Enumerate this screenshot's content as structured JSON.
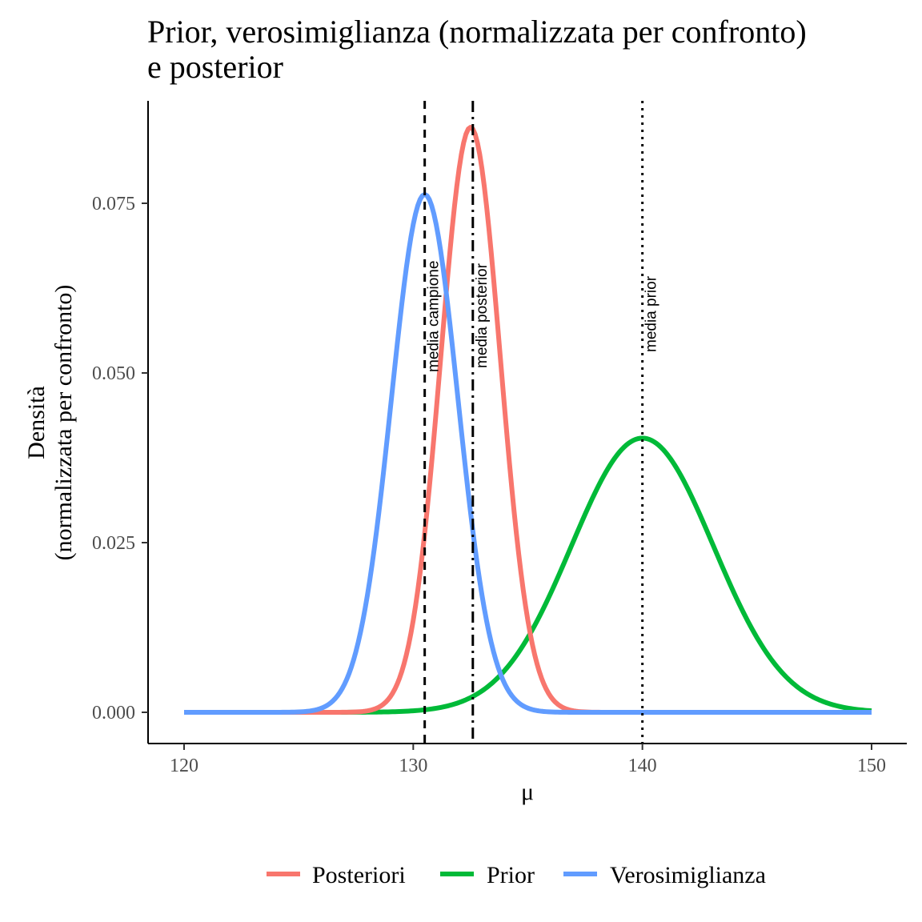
{
  "chart_data": {
    "type": "line",
    "title": [
      "Prior, verosimiglianza (normalizzata per confronto)",
      "e posterior"
    ],
    "xlabel": "μ",
    "ylabel": [
      "Densità",
      "(normalizzata per confronto)"
    ],
    "xlim": [
      120,
      150
    ],
    "ylim": [
      0,
      0.086
    ],
    "x_ticks": [
      120,
      130,
      140,
      150
    ],
    "x_tick_labels": [
      "120",
      "130",
      "140",
      "150"
    ],
    "y_ticks": [
      0,
      0.025,
      0.05,
      0.075
    ],
    "y_tick_labels": [
      "0.000",
      "0.025",
      "0.050",
      "0.075"
    ],
    "grid": false,
    "legend_position": "bottom",
    "series": [
      {
        "name": "Posteriori",
        "color": "#F8766D",
        "distribution": "normal",
        "mean": 132.5,
        "peak": 0.0862,
        "sd": 1.3
      },
      {
        "name": "Prior",
        "color": "#00BA38",
        "distribution": "normal",
        "mean": 140,
        "peak": 0.0404,
        "sd": 3.1
      },
      {
        "name": "Verosimiglianza",
        "color": "#619CFF",
        "distribution": "normal",
        "mean": 130.5,
        "peak": 0.0763,
        "sd": 1.45
      }
    ],
    "vlines": [
      {
        "x": 130.5,
        "label": "media campione",
        "style": "dashed"
      },
      {
        "x": 132.6,
        "label": "media posterior",
        "style": "dashdot"
      },
      {
        "x": 140,
        "label": "media prior",
        "style": "dotted"
      }
    ]
  }
}
